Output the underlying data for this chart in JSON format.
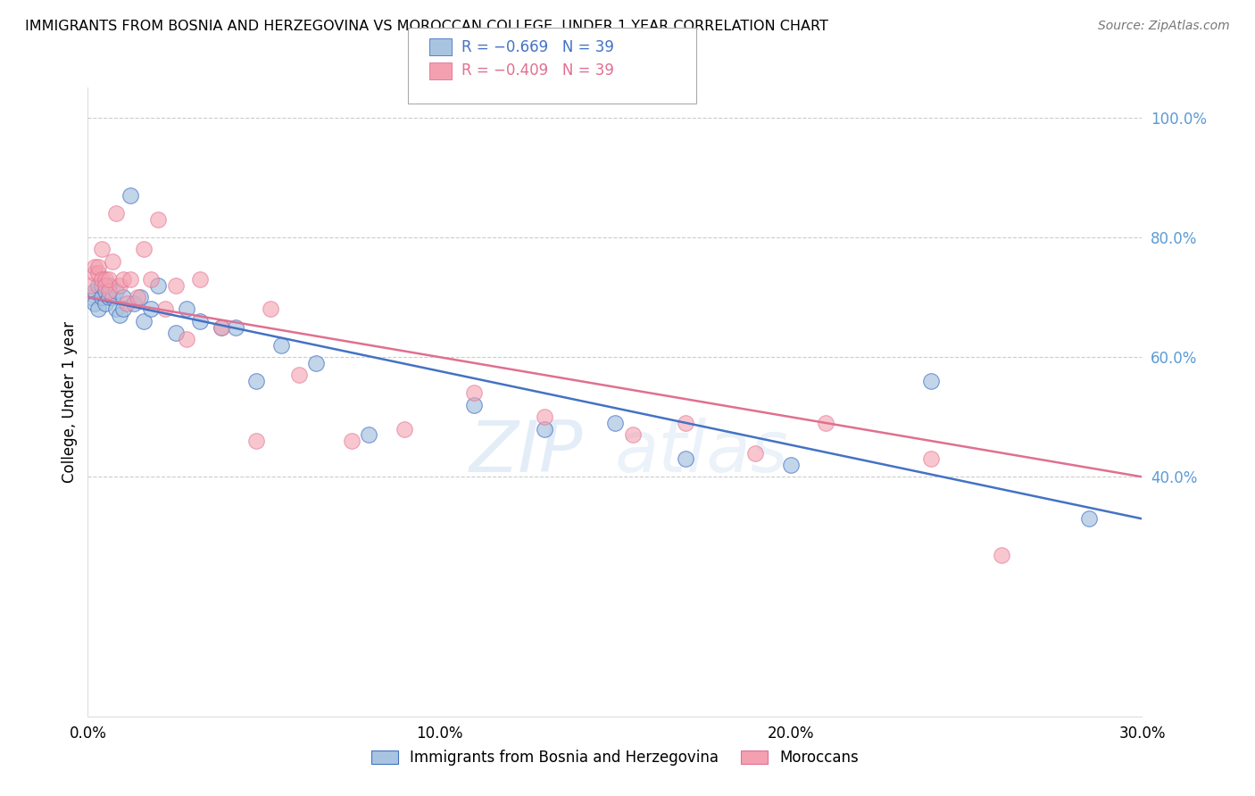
{
  "title": "IMMIGRANTS FROM BOSNIA AND HERZEGOVINA VS MOROCCAN COLLEGE, UNDER 1 YEAR CORRELATION CHART",
  "source": "Source: ZipAtlas.com",
  "ylabel": "College, Under 1 year",
  "xlim": [
    0.0,
    0.3
  ],
  "ylim": [
    0.0,
    1.05
  ],
  "yticks_right": [
    0.4,
    0.6,
    0.8,
    1.0
  ],
  "ytick_labels_right": [
    "40.0%",
    "60.0%",
    "80.0%",
    "100.0%"
  ],
  "xticks": [
    0.0,
    0.1,
    0.2,
    0.3
  ],
  "xtick_labels": [
    "0.0%",
    "10.0%",
    "20.0%",
    "30.0%"
  ],
  "legend_r1": "-0.669",
  "legend_n1": "39",
  "legend_r2": "-0.409",
  "legend_n2": "39",
  "color_blue": "#A8C4E0",
  "color_pink": "#F4A0B0",
  "color_blue_line": "#4472C4",
  "color_pink_line": "#E07090",
  "color_right_axis": "#5B9BD5",
  "watermark_zip": "ZIP",
  "watermark_atlas": "atlas",
  "legend_bottom_blue": "Immigrants from Bosnia and Herzegovina",
  "legend_bottom_pink": "Moroccans",
  "bosnia_x": [
    0.001,
    0.002,
    0.002,
    0.003,
    0.003,
    0.004,
    0.004,
    0.005,
    0.005,
    0.006,
    0.006,
    0.007,
    0.008,
    0.008,
    0.009,
    0.01,
    0.01,
    0.012,
    0.013,
    0.015,
    0.016,
    0.018,
    0.02,
    0.025,
    0.028,
    0.032,
    0.038,
    0.042,
    0.048,
    0.055,
    0.065,
    0.08,
    0.11,
    0.13,
    0.15,
    0.17,
    0.2,
    0.24,
    0.285
  ],
  "bosnia_y": [
    0.7,
    0.71,
    0.69,
    0.72,
    0.68,
    0.7,
    0.72,
    0.71,
    0.69,
    0.7,
    0.72,
    0.7,
    0.68,
    0.71,
    0.67,
    0.7,
    0.68,
    0.87,
    0.69,
    0.7,
    0.66,
    0.68,
    0.72,
    0.64,
    0.68,
    0.66,
    0.65,
    0.65,
    0.56,
    0.62,
    0.59,
    0.47,
    0.52,
    0.48,
    0.49,
    0.43,
    0.42,
    0.56,
    0.33
  ],
  "morocco_x": [
    0.001,
    0.002,
    0.002,
    0.003,
    0.003,
    0.004,
    0.004,
    0.005,
    0.005,
    0.006,
    0.006,
    0.007,
    0.008,
    0.009,
    0.01,
    0.011,
    0.012,
    0.014,
    0.016,
    0.018,
    0.02,
    0.022,
    0.025,
    0.028,
    0.032,
    0.038,
    0.048,
    0.052,
    0.06,
    0.075,
    0.09,
    0.11,
    0.13,
    0.155,
    0.17,
    0.19,
    0.21,
    0.24,
    0.26
  ],
  "morocco_y": [
    0.72,
    0.74,
    0.75,
    0.74,
    0.75,
    0.78,
    0.73,
    0.73,
    0.72,
    0.71,
    0.73,
    0.76,
    0.84,
    0.72,
    0.73,
    0.69,
    0.73,
    0.7,
    0.78,
    0.73,
    0.83,
    0.68,
    0.72,
    0.63,
    0.73,
    0.65,
    0.46,
    0.68,
    0.57,
    0.46,
    0.48,
    0.54,
    0.5,
    0.47,
    0.49,
    0.44,
    0.49,
    0.43,
    0.27
  ]
}
